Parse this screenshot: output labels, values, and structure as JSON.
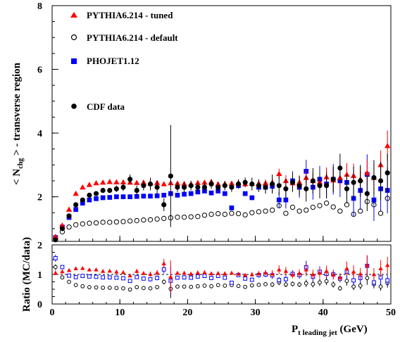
{
  "chart_data": {
    "type": "scatter",
    "upper_panel": {
      "ylabel": "< N_chg > - transverse region",
      "ylabel_main": "< N",
      "ylabel_sub": "chg",
      "ylabel_rest": " > - transverse region",
      "ylim": [
        0.6,
        8
      ],
      "yticks": [
        "2",
        "4",
        "6",
        "8"
      ],
      "series": [
        {
          "name": "PYTHIA6.214 - tuned",
          "marker": "triangle",
          "color": "#ff0000",
          "x": [
            0.5,
            1.5,
            2.5,
            3.5,
            4.5,
            5.5,
            6.5,
            7.5,
            8.5,
            9.5,
            10.5,
            11.5,
            12.5,
            13.5,
            14.5,
            15.5,
            16.5,
            17.5,
            18.5,
            19.5,
            20.5,
            21.5,
            22.5,
            23.5,
            24.5,
            25.5,
            26.5,
            27.5,
            28.5,
            29.5,
            30.5,
            31.5,
            32.5,
            33.5,
            34.5,
            35.5,
            36.5,
            37.5,
            38.5,
            39.5,
            40.5,
            41.5,
            42.5,
            43.5,
            44.5,
            45.5,
            46.5,
            47.5,
            48.5,
            49.5
          ],
          "y": [
            0.75,
            1.1,
            1.6,
            2.1,
            2.3,
            2.38,
            2.43,
            2.45,
            2.47,
            2.46,
            2.46,
            2.45,
            2.44,
            2.45,
            2.42,
            2.44,
            2.4,
            2.43,
            2.42,
            2.41,
            2.4,
            2.44,
            2.45,
            2.47,
            2.4,
            2.41,
            2.42,
            2.44,
            2.4,
            2.41,
            2.42,
            2.43,
            2.45,
            2.72,
            2.5,
            2.43,
            2.45,
            2.6,
            2.5,
            2.46,
            2.62,
            2.52,
            2.6,
            2.7,
            2.66,
            2.55,
            2.75,
            2.6,
            3.0,
            3.6
          ]
        },
        {
          "name": "PYTHIA6.214 - default",
          "marker": "circle-open",
          "color": "#000000",
          "x": [
            0.5,
            1.5,
            2.5,
            3.5,
            4.5,
            5.5,
            6.5,
            7.5,
            8.5,
            9.5,
            10.5,
            11.5,
            12.5,
            13.5,
            14.5,
            15.5,
            16.5,
            17.5,
            18.5,
            19.5,
            20.5,
            21.5,
            22.5,
            23.5,
            24.5,
            25.5,
            26.5,
            27.5,
            28.5,
            29.5,
            30.5,
            31.5,
            32.5,
            33.5,
            34.5,
            35.5,
            36.5,
            37.5,
            38.5,
            39.5,
            40.5,
            41.5,
            42.5,
            43.5,
            44.5,
            45.5,
            46.5,
            47.5,
            48.5,
            49.5
          ],
          "y": [
            0.7,
            0.9,
            1.05,
            1.12,
            1.15,
            1.17,
            1.18,
            1.2,
            1.2,
            1.21,
            1.22,
            1.24,
            1.25,
            1.27,
            1.28,
            1.3,
            1.32,
            1.34,
            1.36,
            1.36,
            1.37,
            1.38,
            1.42,
            1.45,
            1.47,
            1.45,
            1.48,
            1.47,
            1.43,
            1.5,
            1.53,
            1.55,
            1.58,
            1.72,
            1.48,
            1.67,
            1.55,
            1.58,
            1.67,
            1.72,
            1.8,
            1.68,
            1.55,
            1.75,
            1.45,
            1.55,
            1.85,
            1.75,
            1.48,
            1.95
          ]
        },
        {
          "name": "PHOJET1.12",
          "marker": "square",
          "color": "#0000ff",
          "x": [
            0.5,
            1.5,
            2.5,
            3.5,
            4.5,
            5.5,
            6.5,
            7.5,
            8.5,
            9.5,
            10.5,
            11.5,
            12.5,
            13.5,
            14.5,
            15.5,
            16.5,
            17.5,
            18.5,
            19.5,
            20.5,
            21.5,
            22.5,
            23.5,
            24.5,
            25.5,
            26.5,
            27.5,
            28.5,
            29.5,
            30.5,
            31.5,
            32.5,
            33.5,
            34.5,
            35.5,
            36.5,
            37.5,
            38.5,
            39.5,
            40.5,
            41.5,
            42.5,
            43.5,
            44.5,
            45.5,
            46.5,
            47.5,
            48.5,
            49.5
          ],
          "y": [
            0.72,
            1.05,
            1.35,
            1.6,
            1.8,
            1.9,
            1.94,
            1.97,
            1.98,
            2.0,
            2.0,
            2.0,
            2.01,
            2.02,
            2.02,
            2.03,
            2.05,
            2.1,
            2.05,
            2.08,
            2.1,
            2.15,
            2.18,
            2.12,
            2.18,
            2.1,
            1.65,
            2.35,
            2.1,
            1.97,
            2.3,
            2.3,
            2.33,
            1.9,
            1.9,
            2.5,
            2.3,
            2.8,
            2.3,
            2.55,
            2.4,
            2.55,
            2.5,
            2.45,
            1.95,
            2.2,
            2.7,
            1.9,
            2.25,
            2.2
          ]
        },
        {
          "name": "CDF data",
          "marker": "circle-filled",
          "color": "#000000",
          "x": [
            0.5,
            1.5,
            2.5,
            3.5,
            4.5,
            5.5,
            6.5,
            7.5,
            8.5,
            9.5,
            10.5,
            11.5,
            12.5,
            13.5,
            14.5,
            15.5,
            16.5,
            17.5,
            18.5,
            19.5,
            20.5,
            21.5,
            22.5,
            23.5,
            24.5,
            25.5,
            26.5,
            27.5,
            28.5,
            29.5,
            30.5,
            31.5,
            32.5,
            33.5,
            34.5,
            35.5,
            36.5,
            37.5,
            38.5,
            39.5,
            40.5,
            41.5,
            42.5,
            43.5,
            44.5,
            45.5,
            46.5,
            47.5,
            48.5,
            49.5
          ],
          "y": [
            0.65,
            1.0,
            1.4,
            1.75,
            1.9,
            2.05,
            2.1,
            2.2,
            2.2,
            2.25,
            2.3,
            2.55,
            2.2,
            2.35,
            2.4,
            2.3,
            1.75,
            2.65,
            2.3,
            2.3,
            2.35,
            2.3,
            2.3,
            2.4,
            2.3,
            2.35,
            2.3,
            2.4,
            2.45,
            2.4,
            2.35,
            2.3,
            2.4,
            2.35,
            2.25,
            2.45,
            2.35,
            2.25,
            2.5,
            2.35,
            2.35,
            2.55,
            2.9,
            2.25,
            2.45,
            2.5,
            2.1,
            2.6,
            2.5,
            2.75
          ],
          "yerr": [
            0.05,
            0.05,
            0.05,
            0.05,
            0.05,
            0.05,
            0.05,
            0.08,
            0.08,
            0.1,
            0.12,
            0.15,
            0.15,
            0.15,
            0.2,
            0.2,
            0.2,
            1.6,
            0.15,
            0.15,
            0.15,
            0.15,
            0.15,
            0.15,
            0.15,
            0.15,
            0.15,
            0.15,
            0.15,
            0.2,
            0.2,
            0.2,
            0.3,
            0.3,
            0.3,
            0.3,
            0.3,
            0.4,
            0.4,
            0.4,
            0.4,
            0.4,
            0.45,
            0.45,
            0.5,
            0.5,
            0.55,
            0.55,
            0.6,
            0.6
          ]
        }
      ]
    },
    "lower_panel": {
      "ylabel": "Ratio (MC/data)",
      "ylim": [
        0,
        2
      ],
      "yticks": [
        "0",
        "1",
        "2"
      ],
      "series": [
        {
          "name": "PYTHIA6.214 - tuned",
          "marker": "triangle",
          "color": "#ff0000",
          "y": [
            1.05,
            1.1,
            1.14,
            1.2,
            1.21,
            1.16,
            1.16,
            1.11,
            1.12,
            1.09,
            1.07,
            0.96,
            1.11,
            1.04,
            1.01,
            1.06,
            1.37,
            0.92,
            1.05,
            1.05,
            1.02,
            1.06,
            1.07,
            1.03,
            1.04,
            1.03,
            1.05,
            1.02,
            0.98,
            1.0,
            1.03,
            1.06,
            1.02,
            1.16,
            1.11,
            0.99,
            1.04,
            1.16,
            1.0,
            1.05,
            1.11,
            0.99,
            0.9,
            1.2,
            1.09,
            1.02,
            1.31,
            1.0,
            1.2,
            1.31
          ]
        },
        {
          "name": "PYTHIA6.214 - default",
          "marker": "circle-open",
          "color": "#000000",
          "y": [
            1.25,
            0.9,
            0.75,
            0.64,
            0.6,
            0.57,
            0.56,
            0.55,
            0.55,
            0.54,
            0.53,
            0.49,
            0.57,
            0.54,
            0.53,
            0.57,
            0.75,
            0.51,
            0.59,
            0.59,
            0.58,
            0.6,
            0.62,
            0.6,
            0.64,
            0.62,
            0.64,
            0.61,
            0.58,
            0.63,
            0.65,
            0.67,
            0.66,
            0.73,
            0.66,
            0.68,
            0.66,
            0.7,
            0.67,
            0.73,
            0.77,
            0.66,
            0.53,
            0.78,
            0.59,
            0.62,
            0.88,
            0.67,
            0.59,
            0.71
          ]
        },
        {
          "name": "PHOJET1.12",
          "marker": "square-open",
          "color": "#0000ff",
          "y": [
            1.55,
            1.25,
            0.96,
            0.91,
            0.95,
            0.93,
            0.92,
            0.9,
            0.9,
            0.89,
            0.87,
            0.78,
            0.91,
            0.86,
            0.84,
            0.88,
            1.17,
            0.79,
            0.89,
            0.9,
            0.89,
            0.93,
            0.95,
            0.88,
            0.95,
            0.89,
            0.72,
            0.98,
            0.86,
            0.82,
            0.98,
            1.0,
            0.97,
            0.81,
            0.84,
            1.02,
            0.98,
            1.24,
            0.92,
            1.09,
            1.02,
            1.0,
            0.86,
            1.09,
            0.8,
            0.88,
            1.29,
            0.73,
            0.9,
            0.8
          ]
        }
      ]
    },
    "xlabel": "P_t leading jet (GeV)",
    "xlabel_main": "P",
    "xlabel_sub": "t leading jet",
    "xlabel_rest": " (GeV)",
    "xlim": [
      0,
      50
    ],
    "xticks": [
      "0",
      "10",
      "20",
      "30",
      "40",
      "50"
    ]
  }
}
